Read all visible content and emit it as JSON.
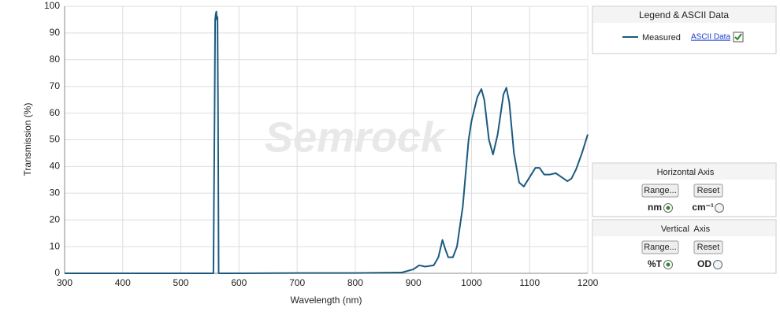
{
  "chart_data": {
    "type": "line",
    "x_label": "Wavelength (nm)",
    "y_label": "Transmission (%)",
    "watermark": "Semrock",
    "x": [
      300,
      400,
      500,
      555,
      556,
      558,
      559,
      560,
      561,
      562,
      563,
      564,
      565,
      600,
      700,
      800,
      880,
      900,
      910,
      920,
      935,
      943,
      950,
      955,
      960,
      968,
      975,
      985,
      995,
      1000,
      1010,
      1017,
      1022,
      1030,
      1037,
      1045,
      1055,
      1060,
      1065,
      1073,
      1082,
      1090,
      1100,
      1110,
      1117,
      1125,
      1135,
      1145,
      1155,
      1165,
      1172,
      1180,
      1190,
      1200
    ],
    "series": [
      {
        "name": "Measured",
        "color": "#1b5a80",
        "values": [
          0,
          0,
          0,
          0,
          0,
          60,
          95,
          97,
          98,
          95,
          96,
          60,
          0,
          0,
          0.1,
          0.1,
          0.3,
          1.5,
          3,
          2.5,
          3,
          6,
          12.5,
          9,
          6,
          6,
          10,
          25,
          50,
          57,
          66,
          69,
          65,
          50,
          44.5,
          52,
          67,
          69.5,
          64,
          45,
          34,
          32.5,
          36,
          39.5,
          39.5,
          37,
          37,
          37.5,
          36,
          34.5,
          35.5,
          39,
          45,
          52
        ]
      }
    ],
    "xlim": [
      300,
      1200
    ],
    "ylim": [
      0,
      100
    ],
    "xticks": [
      300,
      400,
      500,
      600,
      700,
      800,
      900,
      1000,
      1100,
      1200
    ],
    "yticks": [
      0,
      10,
      20,
      30,
      40,
      50,
      60,
      70,
      80,
      90,
      100
    ],
    "grid": true
  },
  "legend_panel": {
    "title": "Legend & ASCII Data",
    "link": "ASCII Data"
  },
  "horizontal_panel": {
    "title": "Horizontal Axis",
    "range_button": "Range...",
    "reset_button": "Reset",
    "option_1": "nm",
    "option_2": "cm⁻¹"
  },
  "vertical_panel": {
    "title": "Vertical  Axis",
    "range_button": "Range...",
    "reset_button": "Reset",
    "option_1": "%T",
    "option_2": "OD"
  }
}
